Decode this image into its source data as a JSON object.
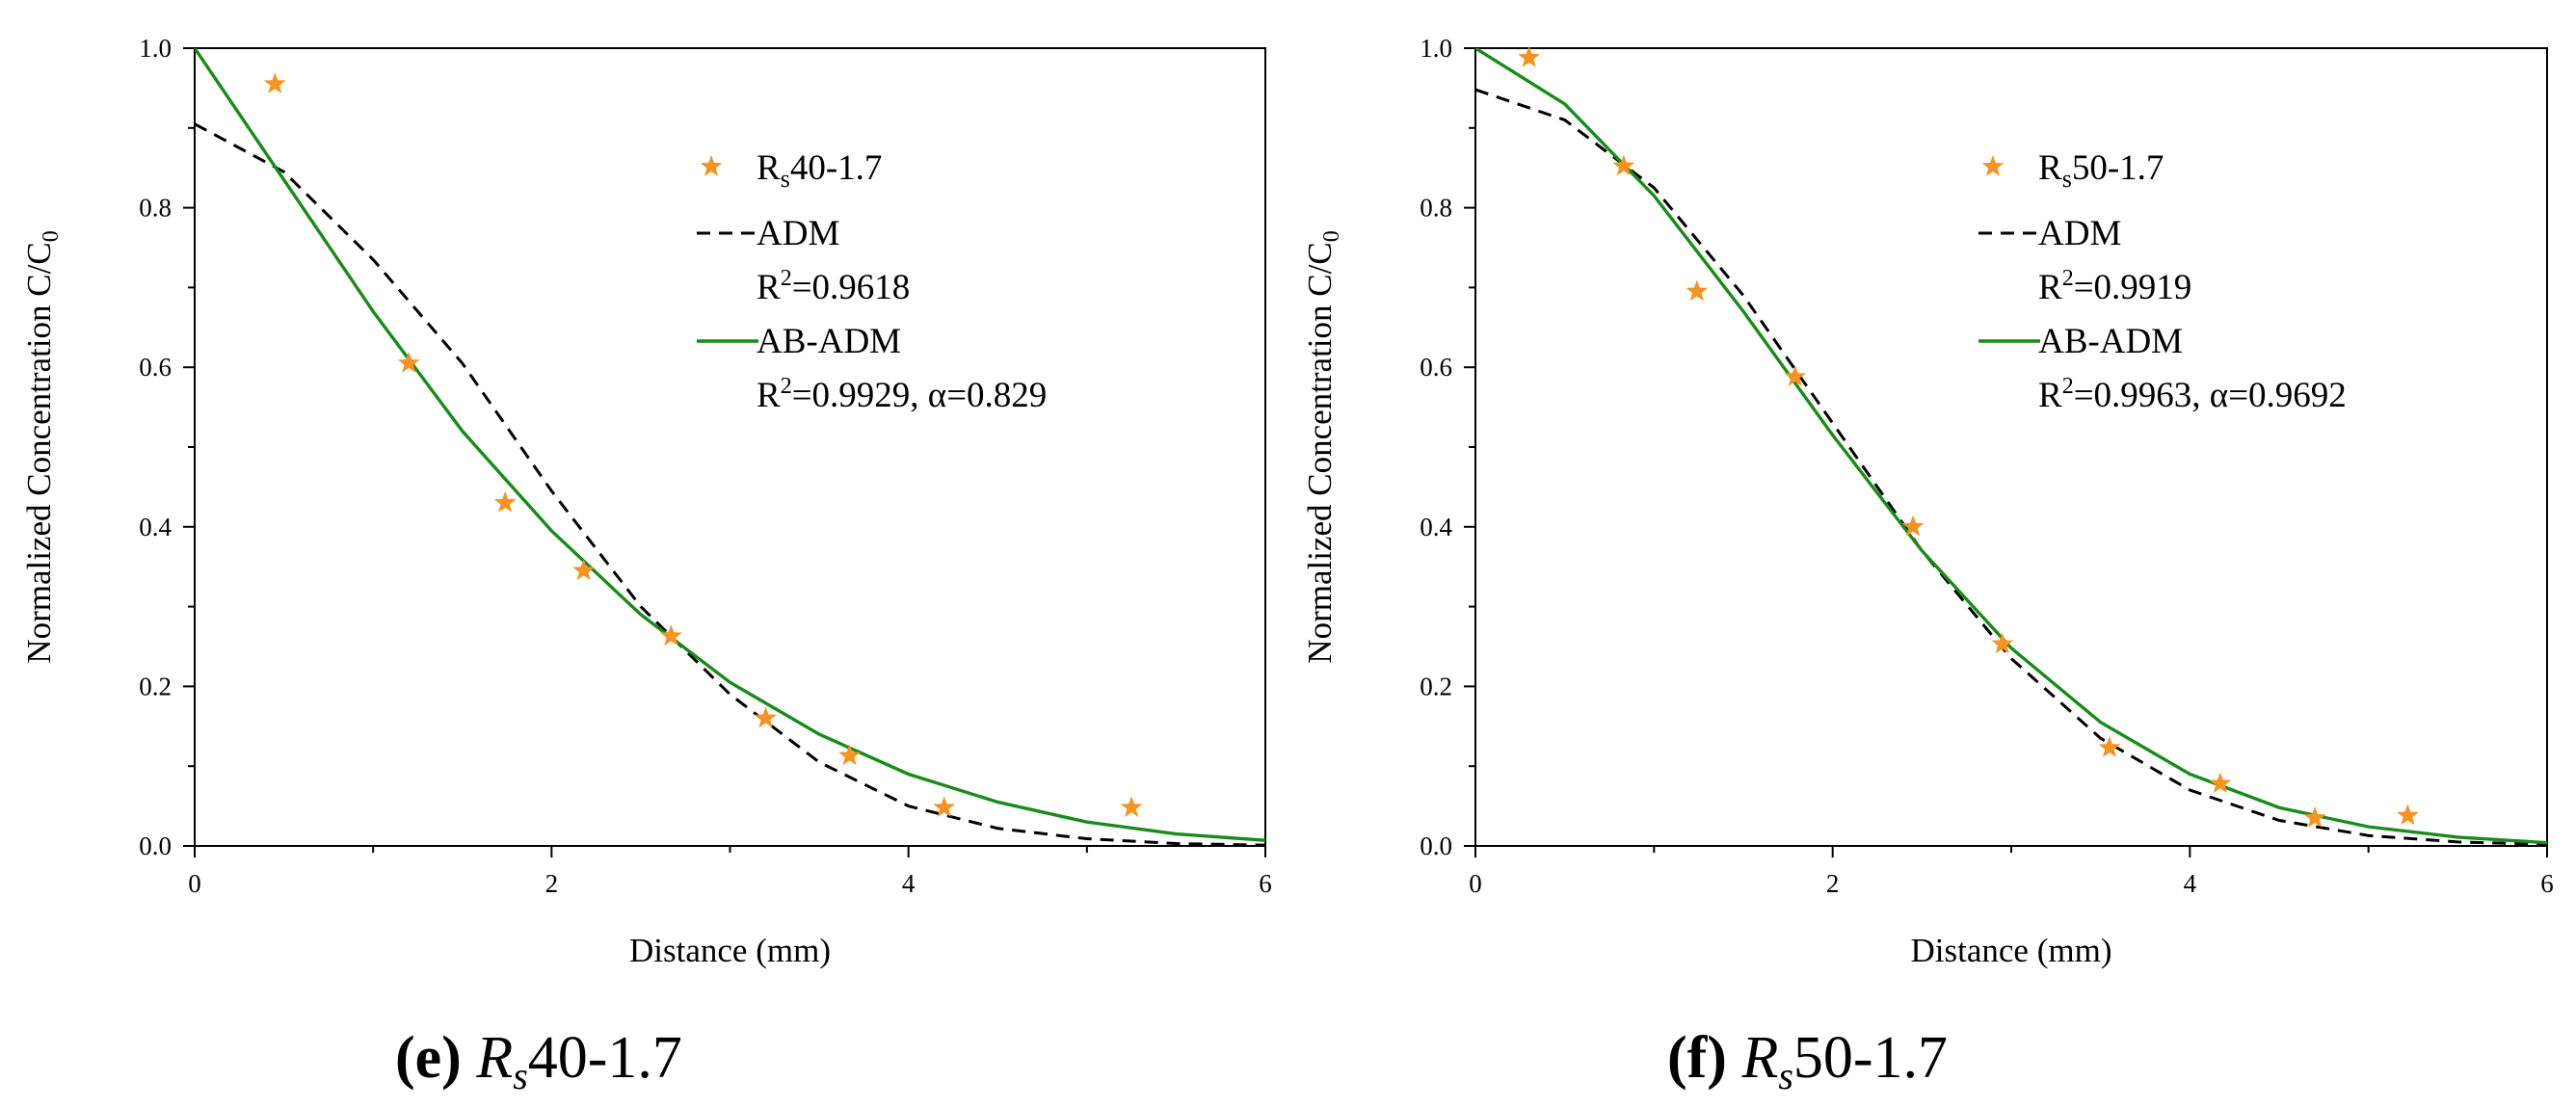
{
  "colors": {
    "data_points": "#f39424",
    "adm": "#000000",
    "ab_adm": "#1a8a1a"
  },
  "chart_data": [
    {
      "type": "scatter",
      "panel_letter": "(e)",
      "caption_italic": "R",
      "caption_sub": "s",
      "caption_rest": "40-1.7",
      "xlabel": "Distance (mm)",
      "ylabel": "Normalized Concentration C/C",
      "ylabel_sub": "0",
      "xlim": [
        0,
        6
      ],
      "ylim": [
        0,
        1.0
      ],
      "xticks": [
        "0",
        "2",
        "4",
        "6"
      ],
      "yticks": [
        "0.0",
        "0.2",
        "0.4",
        "0.6",
        "0.8",
        "1.0"
      ],
      "legend": {
        "data_label_main": "R",
        "data_label_sub": "s",
        "data_label_rest": "40-1.7",
        "adm_label": "ADM",
        "adm_r2_prefix": "R",
        "adm_r2_sup": "2",
        "adm_r2_rest": "=0.9618",
        "abadm_label": "AB-ADM",
        "abadm_r2_prefix": "R",
        "abadm_r2_sup": "2",
        "abadm_r2_rest": "=0.9929, α=0.829"
      },
      "series": [
        {
          "name": "Rs40-1.7",
          "kind": "points",
          "x": [
            0.45,
            1.2,
            1.74,
            2.18,
            2.67,
            3.2,
            3.67,
            4.2,
            5.25
          ],
          "y": [
            0.955,
            0.605,
            0.43,
            0.345,
            0.263,
            0.16,
            0.113,
            0.048,
            0.048
          ]
        },
        {
          "name": "ADM",
          "kind": "dashed",
          "x": [
            0,
            0.5,
            1.0,
            1.5,
            2.0,
            2.5,
            3.0,
            3.5,
            4.0,
            4.5,
            5.0,
            5.5,
            6.0
          ],
          "y": [
            0.905,
            0.845,
            0.735,
            0.605,
            0.445,
            0.3,
            0.19,
            0.105,
            0.05,
            0.022,
            0.009,
            0.003,
            0.001
          ]
        },
        {
          "name": "AB-ADM",
          "kind": "solid",
          "x": [
            0,
            0.5,
            1.0,
            1.5,
            2.0,
            2.5,
            3.0,
            3.5,
            4.0,
            4.5,
            5.0,
            5.5,
            6.0
          ],
          "y": [
            1.0,
            0.835,
            0.67,
            0.52,
            0.395,
            0.29,
            0.205,
            0.14,
            0.09,
            0.055,
            0.03,
            0.015,
            0.007
          ]
        }
      ]
    },
    {
      "type": "scatter",
      "panel_letter": "(f)",
      "caption_italic": "R",
      "caption_sub": "s",
      "caption_rest": "50-1.7",
      "xlabel": "Distance (mm)",
      "ylabel": "Normalized Concentration C/C",
      "ylabel_sub": "0",
      "xlim": [
        0,
        6
      ],
      "ylim": [
        0,
        1.0
      ],
      "xticks": [
        "0",
        "2",
        "4",
        "6"
      ],
      "yticks": [
        "0.0",
        "0.2",
        "0.4",
        "0.6",
        "0.8",
        "1.0"
      ],
      "legend": {
        "data_label_main": "R",
        "data_label_sub": "s",
        "data_label_rest": "50-1.7",
        "adm_label": "ADM",
        "adm_r2_prefix": "R",
        "adm_r2_sup": "2",
        "adm_r2_rest": "=0.9919",
        "abadm_label": "AB-ADM",
        "abadm_r2_prefix": "R",
        "abadm_r2_sup": "2",
        "abadm_r2_rest": "=0.9963, α=0.9692"
      },
      "series": [
        {
          "name": "Rs50-1.7",
          "kind": "points",
          "x": [
            0.3,
            0.83,
            1.24,
            1.79,
            2.45,
            2.95,
            3.55,
            4.17,
            4.7,
            5.22
          ],
          "y": [
            0.988,
            0.852,
            0.695,
            0.588,
            0.4,
            0.253,
            0.123,
            0.078,
            0.035,
            0.038
          ]
        },
        {
          "name": "ADM",
          "kind": "dashed",
          "x": [
            0,
            0.5,
            1.0,
            1.5,
            2.0,
            2.5,
            3.0,
            3.5,
            4.0,
            4.5,
            5.0,
            5.5,
            6.0
          ],
          "y": [
            0.948,
            0.91,
            0.825,
            0.69,
            0.53,
            0.37,
            0.235,
            0.135,
            0.07,
            0.032,
            0.013,
            0.005,
            0.002
          ]
        },
        {
          "name": "AB-ADM",
          "kind": "solid",
          "x": [
            0,
            0.5,
            1.0,
            1.5,
            2.0,
            2.5,
            3.0,
            3.5,
            4.0,
            4.5,
            5.0,
            5.5,
            6.0
          ],
          "y": [
            1.0,
            0.93,
            0.815,
            0.67,
            0.515,
            0.37,
            0.248,
            0.155,
            0.09,
            0.048,
            0.024,
            0.011,
            0.004
          ]
        }
      ]
    }
  ]
}
